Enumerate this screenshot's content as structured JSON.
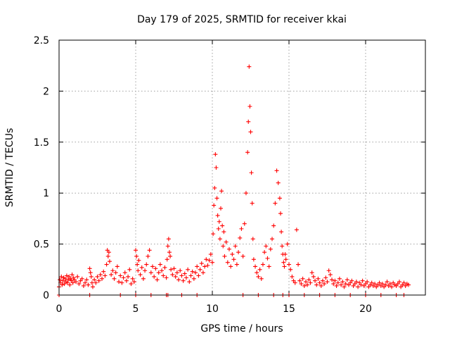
{
  "chart_data": {
    "type": "scatter",
    "title": "Day 179 of 2025, SRMTID for receiver kkai",
    "xlabel": "GPS time / hours",
    "ylabel": "SRMTID / TECUs",
    "xlim": [
      0,
      23.9
    ],
    "ylim": [
      0,
      2.5
    ],
    "xticks": [
      0,
      5,
      10,
      15,
      20
    ],
    "yticks": [
      0,
      0.5,
      1,
      1.5,
      2,
      2.5
    ],
    "xtick_labels": [
      "0",
      "5",
      "10",
      "15",
      "20"
    ],
    "ytick_labels": [
      "0",
      "0.5",
      "1",
      "1.5",
      "2",
      "2.5"
    ],
    "grid": true,
    "marker": "+",
    "color": "#ff0000",
    "series": [
      {
        "name": "SRMTID",
        "x": [
          0.0,
          0.05,
          0.1,
          0.15,
          0.2,
          0.25,
          0.3,
          0.35,
          0.4,
          0.45,
          0.5,
          0.55,
          0.6,
          0.65,
          0.7,
          0.75,
          0.8,
          0.85,
          0.9,
          0.95,
          1.0,
          1.1,
          1.2,
          1.3,
          1.4,
          1.5,
          1.6,
          1.7,
          1.8,
          1.9,
          2.0,
          2.05,
          2.1,
          2.15,
          2.2,
          2.3,
          2.4,
          2.5,
          2.6,
          2.7,
          2.8,
          2.9,
          3.0,
          3.1,
          3.15,
          3.2,
          3.25,
          3.3,
          3.4,
          3.5,
          3.6,
          3.7,
          3.8,
          3.9,
          4.0,
          4.1,
          4.2,
          4.3,
          4.4,
          4.5,
          4.6,
          4.7,
          4.8,
          4.9,
          5.0,
          5.05,
          5.1,
          5.15,
          5.2,
          5.3,
          5.4,
          5.5,
          5.6,
          5.7,
          5.8,
          5.9,
          6.0,
          6.1,
          6.2,
          6.3,
          6.4,
          6.5,
          6.6,
          6.7,
          6.8,
          6.9,
          7.0,
          7.05,
          7.1,
          7.15,
          7.2,
          7.25,
          7.3,
          7.4,
          7.5,
          7.6,
          7.7,
          7.8,
          7.9,
          8.0,
          8.1,
          8.2,
          8.3,
          8.4,
          8.5,
          8.6,
          8.7,
          8.8,
          8.9,
          9.0,
          9.1,
          9.2,
          9.3,
          9.4,
          9.5,
          9.6,
          9.7,
          9.8,
          9.9,
          10.0,
          10.05,
          10.1,
          10.15,
          10.2,
          10.25,
          10.3,
          10.35,
          10.4,
          10.45,
          10.5,
          10.55,
          10.6,
          10.65,
          10.7,
          10.75,
          10.8,
          10.9,
          11.0,
          11.1,
          11.2,
          11.3,
          11.4,
          11.5,
          11.6,
          11.7,
          11.8,
          11.9,
          12.0,
          12.1,
          12.2,
          12.3,
          12.35,
          12.4,
          12.45,
          12.5,
          12.55,
          12.6,
          12.65,
          12.7,
          12.8,
          12.9,
          13.0,
          13.1,
          13.2,
          13.3,
          13.4,
          13.5,
          13.6,
          13.7,
          13.8,
          13.9,
          14.0,
          14.1,
          14.2,
          14.3,
          14.4,
          14.45,
          14.5,
          14.55,
          14.6,
          14.65,
          14.7,
          14.75,
          14.8,
          14.9,
          15.0,
          15.1,
          15.2,
          15.3,
          15.4,
          15.5,
          15.6,
          15.7,
          15.8,
          15.9,
          16.0,
          16.1,
          16.2,
          16.3,
          16.4,
          16.5,
          16.6,
          16.7,
          16.8,
          16.9,
          17.0,
          17.1,
          17.2,
          17.3,
          17.4,
          17.5,
          17.6,
          17.7,
          17.8,
          17.9,
          18.0,
          18.1,
          18.2,
          18.3,
          18.4,
          18.5,
          18.6,
          18.7,
          18.8,
          18.9,
          19.0,
          19.1,
          19.2,
          19.3,
          19.4,
          19.5,
          19.6,
          19.7,
          19.8,
          19.9,
          20.0,
          20.1,
          20.2,
          20.3,
          20.4,
          20.5,
          20.6,
          20.7,
          20.8,
          20.9,
          21.0,
          21.1,
          21.2,
          21.3,
          21.4,
          21.5,
          21.6,
          21.7,
          21.8,
          21.9,
          22.0,
          22.1,
          22.2,
          22.3,
          22.4,
          22.5,
          22.6,
          22.7,
          22.8
        ],
        "y": [
          0.08,
          0.15,
          0.12,
          0.18,
          0.1,
          0.14,
          0.17,
          0.11,
          0.16,
          0.13,
          0.19,
          0.12,
          0.15,
          0.18,
          0.1,
          0.16,
          0.14,
          0.2,
          0.12,
          0.17,
          0.15,
          0.13,
          0.18,
          0.11,
          0.14,
          0.16,
          0.09,
          0.12,
          0.15,
          0.1,
          0.26,
          0.22,
          0.18,
          0.12,
          0.08,
          0.15,
          0.12,
          0.18,
          0.14,
          0.2,
          0.16,
          0.23,
          0.19,
          0.3,
          0.44,
          0.38,
          0.42,
          0.33,
          0.2,
          0.24,
          0.16,
          0.22,
          0.28,
          0.13,
          0.19,
          0.12,
          0.17,
          0.22,
          0.14,
          0.18,
          0.25,
          0.11,
          0.16,
          0.13,
          0.44,
          0.38,
          0.3,
          0.24,
          0.34,
          0.2,
          0.27,
          0.16,
          0.24,
          0.3,
          0.38,
          0.44,
          0.22,
          0.28,
          0.18,
          0.26,
          0.15,
          0.22,
          0.3,
          0.24,
          0.19,
          0.27,
          0.17,
          0.35,
          0.48,
          0.55,
          0.42,
          0.38,
          0.25,
          0.2,
          0.26,
          0.18,
          0.22,
          0.15,
          0.24,
          0.19,
          0.14,
          0.21,
          0.17,
          0.25,
          0.13,
          0.19,
          0.23,
          0.16,
          0.22,
          0.28,
          0.19,
          0.25,
          0.31,
          0.22,
          0.28,
          0.35,
          0.29,
          0.34,
          0.4,
          0.32,
          0.6,
          0.88,
          1.05,
          1.38,
          1.25,
          0.95,
          0.78,
          0.65,
          0.72,
          0.55,
          0.85,
          1.02,
          0.68,
          0.48,
          0.62,
          0.38,
          0.52,
          0.32,
          0.45,
          0.28,
          0.4,
          0.35,
          0.48,
          0.3,
          0.42,
          0.56,
          0.65,
          0.38,
          0.7,
          1.0,
          1.4,
          1.7,
          2.24,
          1.85,
          1.6,
          1.2,
          0.9,
          0.55,
          0.35,
          0.28,
          0.22,
          0.18,
          0.25,
          0.16,
          0.3,
          0.42,
          0.48,
          0.36,
          0.28,
          0.45,
          0.55,
          0.68,
          0.9,
          1.22,
          1.1,
          0.95,
          0.8,
          0.62,
          0.48,
          0.4,
          0.32,
          0.28,
          0.4,
          0.35,
          0.5,
          0.3,
          0.25,
          0.18,
          0.14,
          0.12,
          0.64,
          0.3,
          0.14,
          0.11,
          0.16,
          0.09,
          0.13,
          0.1,
          0.15,
          0.12,
          0.22,
          0.18,
          0.14,
          0.1,
          0.16,
          0.12,
          0.09,
          0.14,
          0.11,
          0.17,
          0.13,
          0.24,
          0.2,
          0.15,
          0.11,
          0.14,
          0.09,
          0.12,
          0.16,
          0.1,
          0.13,
          0.08,
          0.11,
          0.15,
          0.1,
          0.12,
          0.14,
          0.09,
          0.11,
          0.13,
          0.08,
          0.12,
          0.1,
          0.14,
          0.09,
          0.11,
          0.13,
          0.08,
          0.1,
          0.12,
          0.09,
          0.11,
          0.08,
          0.1,
          0.12,
          0.09,
          0.11,
          0.08,
          0.1,
          0.13,
          0.09,
          0.11,
          0.08,
          0.12,
          0.1,
          0.09,
          0.11,
          0.13,
          0.08,
          0.1,
          0.12,
          0.09,
          0.11,
          0.1
        ],
        "zero_x": [
          0.0,
          2.0,
          4.0,
          5.0,
          6.0,
          7.0,
          7.1,
          8.0,
          9.0,
          12.0,
          13.0,
          14.0,
          14.6,
          15.0,
          16.0,
          17.0,
          18.0,
          19.0,
          20.0,
          21.0,
          22.0,
          22.5
        ]
      }
    ]
  }
}
